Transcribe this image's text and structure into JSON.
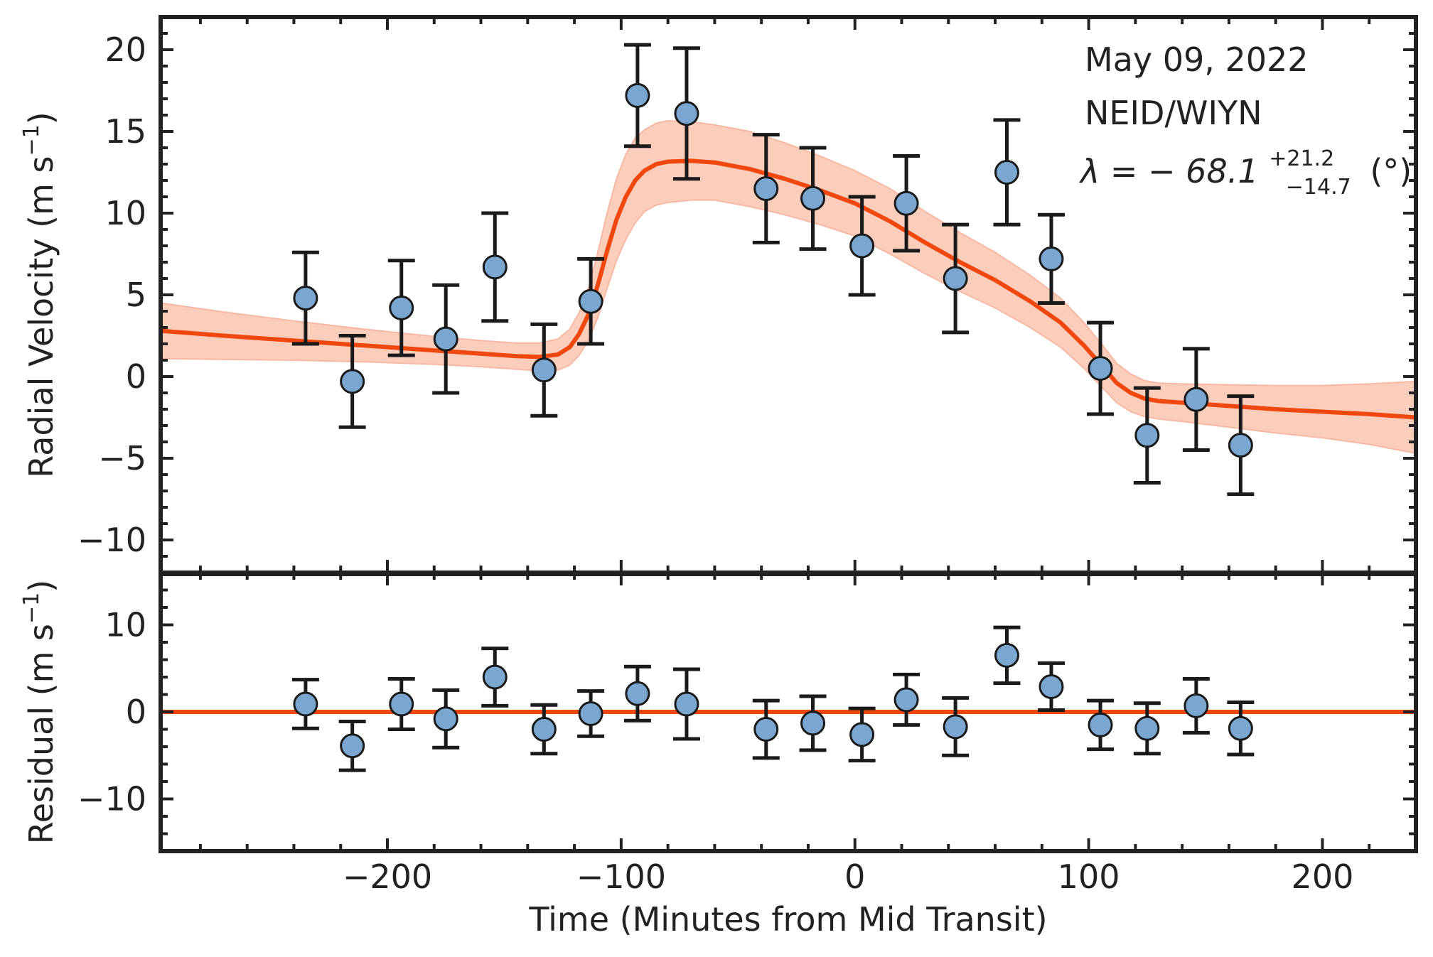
{
  "chart_data": [
    {
      "type": "scatter",
      "panel": "top",
      "ylabel": "Radial Velocity (m s",
      "ylabel_sup": "−1",
      "ylabel_tail": ")",
      "xlim": [
        -297,
        240
      ],
      "ylim": [
        -12,
        22
      ],
      "yticks": [
        -10,
        -5,
        0,
        5,
        10,
        15,
        20
      ],
      "ytick_labels": [
        "−10",
        "−5",
        "0",
        "5",
        "10",
        "15",
        "20"
      ],
      "annotation": {
        "line1": "May 09, 2022",
        "line2": "NEID/WIYN",
        "lambda_prefix": "λ = − 68.1",
        "lambda_sup": "+21.2",
        "lambda_sub": "−14.7",
        "lambda_unit": "(°)"
      },
      "series": [
        {
          "kind": "errorbar",
          "x": [
            -235,
            -215,
            -194,
            -175,
            -154,
            -133,
            -113,
            -93,
            -72,
            -38,
            -18,
            3,
            22,
            43,
            65,
            84,
            105,
            125,
            146,
            165
          ],
          "y": [
            4.8,
            -0.3,
            4.2,
            2.3,
            6.7,
            0.4,
            4.6,
            17.2,
            16.1,
            11.5,
            10.9,
            8.0,
            10.6,
            6.0,
            12.5,
            7.2,
            0.5,
            -3.6,
            -1.4,
            -4.2
          ],
          "yerr": [
            2.8,
            2.8,
            2.9,
            3.3,
            3.3,
            2.8,
            2.6,
            3.1,
            4.0,
            3.3,
            3.1,
            3.0,
            2.9,
            3.3,
            3.2,
            2.7,
            2.8,
            2.9,
            3.1,
            3.0
          ]
        },
        {
          "kind": "model",
          "x": [
            -297,
            -270,
            -240,
            -210,
            -180,
            -160,
            -145,
            -135,
            -127,
            -122,
            -118,
            -114,
            -110,
            -106,
            -102,
            -98,
            -94,
            -90,
            -85,
            -80,
            -70,
            -60,
            -45,
            -30,
            -15,
            0,
            15,
            30,
            45,
            60,
            75,
            88,
            98,
            106,
            112,
            118,
            124,
            130,
            140,
            160,
            180,
            200,
            220,
            240
          ],
          "y": [
            2.8,
            2.5,
            2.2,
            1.9,
            1.6,
            1.4,
            1.25,
            1.2,
            1.35,
            1.8,
            2.6,
            3.8,
            5.6,
            7.7,
            9.6,
            11.0,
            12.0,
            12.6,
            13.0,
            13.15,
            13.2,
            13.1,
            12.7,
            12.1,
            11.4,
            10.6,
            9.5,
            8.2,
            7.0,
            5.9,
            4.6,
            3.3,
            1.9,
            0.6,
            -0.4,
            -1.0,
            -1.35,
            -1.5,
            -1.6,
            -1.8,
            -2.0,
            -2.15,
            -2.3,
            -2.5
          ],
          "band_halfwidth": [
            1.7,
            1.45,
            1.2,
            1.0,
            0.85,
            0.8,
            0.8,
            0.85,
            0.95,
            1.1,
            1.3,
            1.6,
            2.0,
            2.3,
            2.5,
            2.6,
            2.6,
            2.5,
            2.5,
            2.5,
            2.4,
            2.3,
            2.3,
            2.2,
            2.1,
            2.0,
            2.0,
            1.9,
            1.8,
            1.7,
            1.6,
            1.5,
            1.4,
            1.3,
            1.2,
            1.15,
            1.1,
            1.1,
            1.15,
            1.3,
            1.45,
            1.6,
            1.85,
            2.2
          ]
        }
      ]
    },
    {
      "type": "scatter",
      "panel": "bottom",
      "ylabel": "Residual (m s",
      "ylabel_sup": "−1",
      "ylabel_tail": ")",
      "xlabel": "Time (Minutes from Mid Transit)",
      "xlim": [
        -297,
        240
      ],
      "ylim": [
        -16,
        16
      ],
      "yticks": [
        -10,
        0,
        10
      ],
      "ytick_labels": [
        "−10",
        "0",
        "10"
      ],
      "xticks": [
        -200,
        -100,
        0,
        100,
        200
      ],
      "xtick_labels": [
        "−200",
        "−100",
        "0",
        "100",
        "200"
      ],
      "series": [
        {
          "kind": "errorbar",
          "x": [
            -235,
            -215,
            -194,
            -175,
            -154,
            -133,
            -113,
            -93,
            -72,
            -38,
            -18,
            3,
            22,
            43,
            65,
            84,
            105,
            125,
            146,
            165
          ],
          "y": [
            0.9,
            -3.9,
            0.9,
            -0.8,
            4.0,
            -2.0,
            -0.2,
            2.1,
            0.9,
            -2.0,
            -1.3,
            -2.6,
            1.4,
            -1.7,
            6.5,
            2.9,
            -1.5,
            -1.9,
            0.7,
            -1.9
          ],
          "yerr": [
            2.8,
            2.8,
            2.9,
            3.3,
            3.3,
            2.8,
            2.6,
            3.1,
            4.0,
            3.3,
            3.1,
            3.0,
            2.9,
            3.3,
            3.2,
            2.7,
            2.8,
            2.9,
            3.1,
            3.0
          ]
        },
        {
          "kind": "zero-line",
          "y": 0
        }
      ]
    }
  ],
  "colors": {
    "marker_fill": "#7aa6d0",
    "marker_edge": "#1a1a1a",
    "errorbar": "#1a1a1a",
    "model_line": "#f0470f",
    "band_fill": "#fbcdbb",
    "axes": "#222222"
  }
}
